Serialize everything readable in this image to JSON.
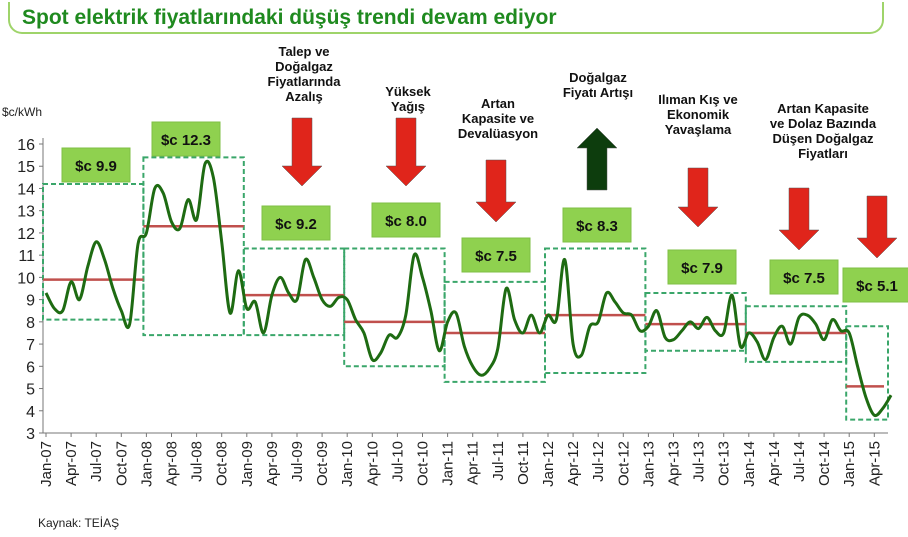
{
  "title": "Spot elektrik fiyatlarındaki düşüş trendi devam ediyor",
  "source": "Kaynak: TEİAŞ",
  "colors": {
    "title": "#1f8a1f",
    "line": "#1e6b12",
    "average": "#c0504d",
    "box_border": "#3aa66a",
    "label_fill": "#8fd14f",
    "arrow_down": "#e0251b",
    "arrow_up": "#0d3d0d"
  },
  "chart_data": {
    "type": "line",
    "title": "Spot elektrik fiyatlarındaki düşüş trendi devam ediyor",
    "ylabel": "$c/kWh",
    "ylim": [
      3,
      16
    ],
    "yticks": [
      3,
      4,
      5,
      6,
      7,
      8,
      9,
      10,
      11,
      12,
      13,
      14,
      15,
      16
    ],
    "xlabels": [
      "Jan-07",
      "Apr-07",
      "Jul-07",
      "Oct-07",
      "Jan-08",
      "Apr-08",
      "Jul-08",
      "Oct-08",
      "Jan-09",
      "Apr-09",
      "Jul-09",
      "Oct-09",
      "Jan-10",
      "Apr-10",
      "Jul-10",
      "Oct-10",
      "Jan-11",
      "Apr-11",
      "Jul-11",
      "Oct-11",
      "Jan-12",
      "Apr-12",
      "Jul-12",
      "Oct-12",
      "Jan-13",
      "Apr-13",
      "Jul-13",
      "Oct-13",
      "Jan-14",
      "Apr-14",
      "Jul-14",
      "Oct-14",
      "Jan-15",
      "Apr-15"
    ],
    "series": [
      {
        "type": "line",
        "values": [
          9.3,
          8.6,
          8.5,
          9.8,
          9.0,
          10.5,
          11.6,
          10.8,
          9.5,
          8.5,
          7.9,
          11.5,
          12.0,
          14.0,
          13.8,
          12.5,
          12.2,
          13.5,
          12.6,
          15.1,
          14.5,
          11.6,
          8.4,
          10.3,
          8.6,
          8.9,
          7.5,
          9.2,
          10.0,
          9.3,
          9.0,
          10.8,
          10.0,
          9.0,
          8.7,
          9.1,
          9.0,
          8.1,
          7.5,
          6.3,
          6.6,
          7.4,
          7.3,
          8.3,
          11.0,
          10.0,
          8.5,
          6.7,
          8.0,
          8.4,
          6.9,
          6.0,
          5.6,
          5.9,
          6.8,
          9.5,
          8.1,
          7.5,
          8.3,
          7.5,
          8.3,
          8.1,
          10.8,
          7.0,
          6.5,
          7.8,
          8.0,
          9.3,
          8.9,
          8.4,
          8.3,
          7.6,
          7.8,
          8.5,
          7.3,
          7.2,
          7.6,
          8.0,
          7.7,
          8.2,
          7.6,
          7.5,
          9.2,
          6.9,
          7.5,
          7.1,
          6.3,
          7.3,
          7.8,
          7.0,
          8.2,
          8.3,
          7.9,
          7.2,
          8.1,
          7.6,
          7.5,
          6.0,
          4.6,
          3.8,
          4.1,
          4.7
        ]
      }
    ],
    "period_averages": [
      {
        "label": "$c 9.9",
        "value": 9.9,
        "start": 0,
        "end": 12
      },
      {
        "label": "$c 12.3",
        "value": 12.3,
        "start": 12,
        "end": 24
      },
      {
        "label": "$c 9.2",
        "value": 9.2,
        "start": 24,
        "end": 36
      },
      {
        "label": "$c 8.0",
        "value": 8.0,
        "start": 36,
        "end": 48
      },
      {
        "label": "$c 7.5",
        "value": 7.5,
        "start": 48,
        "end": 60
      },
      {
        "label": "$c 8.3",
        "value": 8.3,
        "start": 60,
        "end": 72
      },
      {
        "label": "$c 7.9",
        "value": 7.9,
        "start": 72,
        "end": 84
      },
      {
        "label": "$c 7.5",
        "value": 7.5,
        "start": 84,
        "end": 96
      },
      {
        "label": "$c 5.1",
        "value": 5.1,
        "start": 96,
        "end": 101
      }
    ],
    "period_ranges": [
      [
        8.1,
        14.2
      ],
      [
        7.4,
        15.4
      ],
      [
        7.4,
        11.3
      ],
      [
        6.0,
        11.3
      ],
      [
        5.3,
        9.8
      ],
      [
        5.7,
        11.3
      ],
      [
        6.7,
        9.3
      ],
      [
        6.2,
        8.7
      ],
      [
        3.6,
        7.8
      ]
    ],
    "annotations": [
      {
        "text": "Talep ve\nDoğalgaz\nFiyatlarında\nAzalış",
        "direction": "down"
      },
      {
        "text": "Yüksek\nYağış",
        "direction": "down"
      },
      {
        "text": "Artan\nKapasite ve\nDevalüasyon",
        "direction": "down"
      },
      {
        "text": "Doğalgaz\nFiyatı Artışı",
        "direction": "up"
      },
      {
        "text": "Ilıman Kış ve\nEkonomik\nYavaşlama",
        "direction": "down"
      },
      {
        "text": "Artan Kapasite\nve Dolaz Bazında\nDüşen Doğalgaz\nFiyatları",
        "direction": "down"
      }
    ]
  }
}
